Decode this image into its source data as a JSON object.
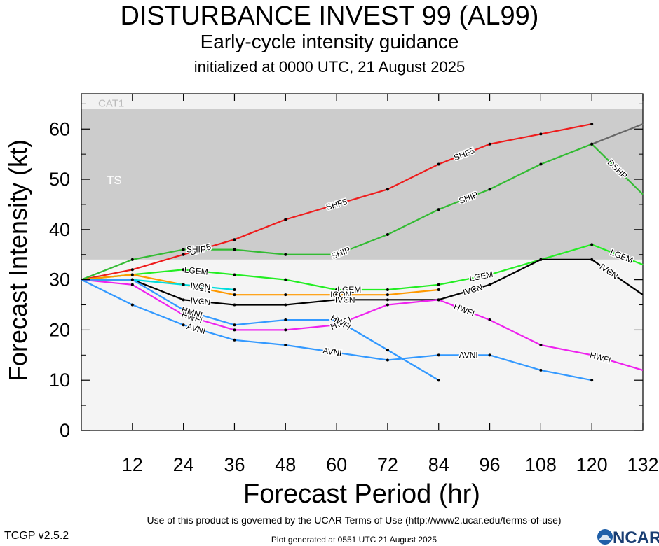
{
  "header": {
    "title": "DISTURBANCE INVEST 99 (AL99)",
    "subtitle": "Early-cycle intensity guidance",
    "init": "initialized at 0000 UTC, 21 August 2025"
  },
  "footer": {
    "terms": "Use of this product is governed by the UCAR Terms of Use (http://www2.ucar.edu/terms-of-use)",
    "version": "TCGP v2.5.2",
    "generated": "Plot generated at 0551 UTC   21 August 2025",
    "logo_text": "NCAR"
  },
  "chart_data": {
    "type": "line",
    "xlabel": "Forecast Period (hr)",
    "ylabel": "Forecast Intensity (kt)",
    "xlim": [
      0,
      132
    ],
    "ylim": [
      0,
      67
    ],
    "xticks": [
      12,
      24,
      36,
      48,
      60,
      72,
      84,
      96,
      108,
      120,
      132
    ],
    "yticks": [
      0,
      10,
      20,
      30,
      40,
      50,
      60
    ],
    "bands": [
      {
        "name": "TS",
        "from": 34,
        "to": 64,
        "color": "#cccccc"
      },
      {
        "name": "CAT1",
        "from": 64,
        "to": 67,
        "color": "#f2f2f2"
      },
      {
        "name": "",
        "from": 0,
        "to": 34,
        "color": "#f4f4f4"
      }
    ],
    "series": [
      {
        "name": "SHF5",
        "color": "#ee1c1c",
        "x": [
          0,
          12,
          24,
          36,
          48,
          72,
          84,
          96,
          108,
          120
        ],
        "y": [
          30,
          32,
          35,
          38,
          42,
          48,
          53,
          57,
          59,
          61
        ],
        "labels_at": [
          28,
          60,
          90
        ]
      },
      {
        "name": "SHIP",
        "color": "#33bb33",
        "x": [
          0,
          12,
          24,
          36,
          48,
          60,
          72,
          84,
          96,
          108,
          120
        ],
        "y": [
          30,
          34,
          36,
          36,
          35,
          35,
          39,
          44,
          48,
          53,
          57
        ],
        "labels_at": [
          27,
          61,
          91,
          123
        ]
      },
      {
        "name": "SHIP",
        "color": "#666666",
        "x": [
          120,
          132
        ],
        "y": [
          57,
          61
        ],
        "labels_at": []
      },
      {
        "name": "DSHP",
        "color": "#33bb33",
        "x": [
          120,
          132
        ],
        "y": [
          57,
          47
        ],
        "labels_at": [
          28,
          62,
          93,
          126
        ]
      },
      {
        "name": "LGEM",
        "color": "#22ee22",
        "x": [
          0,
          12,
          24,
          36,
          48,
          60,
          72,
          84,
          96,
          108,
          120,
          132
        ],
        "y": [
          30,
          31,
          32,
          31,
          30,
          28,
          28,
          29,
          31,
          34,
          37,
          33
        ],
        "labels_at": [
          27,
          63,
          94,
          127
        ]
      },
      {
        "name": "ICON",
        "color": "#ff9900",
        "x": [
          0,
          12,
          24,
          36,
          48,
          60,
          72,
          84
        ],
        "y": [
          30,
          31,
          29,
          27,
          27,
          27,
          27,
          28
        ],
        "labels_at": [
          28,
          61
        ]
      },
      {
        "name": "IVCN",
        "color": "#000000",
        "x": [
          0,
          12,
          24,
          36,
          48,
          60,
          72,
          84,
          96,
          108,
          120,
          132
        ],
        "y": [
          30,
          30,
          26,
          25,
          25,
          26,
          26,
          26,
          29,
          34,
          34,
          27
        ],
        "labels_at": [
          28,
          62,
          92,
          124
        ]
      },
      {
        "name": "IVCN",
        "color": "#00dddd",
        "x": [
          0,
          12,
          24,
          36
        ],
        "y": [
          30,
          30,
          29,
          28
        ],
        "labels_at": [
          28
        ]
      },
      {
        "name": "HWFI",
        "color": "#ee22ee",
        "x": [
          0,
          12,
          24,
          36,
          48,
          60,
          72,
          84,
          96,
          108,
          120,
          132
        ],
        "y": [
          30,
          29,
          23,
          20,
          20,
          21,
          25,
          26,
          22,
          17,
          15,
          12
        ],
        "labels_at": [
          26,
          61,
          90,
          122
        ]
      },
      {
        "name": "HMNI",
        "color": "#3399ff",
        "x": [
          0,
          12,
          24,
          36,
          48,
          60,
          72,
          84
        ],
        "y": [
          30,
          30,
          24,
          21,
          22,
          22,
          16,
          10
        ],
        "labels_at": [
          26
        ]
      },
      {
        "name": "HWFI",
        "color": "#3399ff",
        "x": [
          60,
          72,
          84
        ],
        "y": [
          22,
          16,
          10
        ],
        "labels_at": [
          61
        ]
      },
      {
        "name": "AVNI",
        "color": "#3399ff",
        "x": [
          0,
          12,
          24,
          36,
          48,
          72,
          84,
          96,
          108,
          120
        ],
        "y": [
          30,
          25,
          21,
          18,
          17,
          14,
          15,
          15,
          12,
          10
        ],
        "labels_at": [
          27,
          59,
          91
        ]
      }
    ]
  }
}
